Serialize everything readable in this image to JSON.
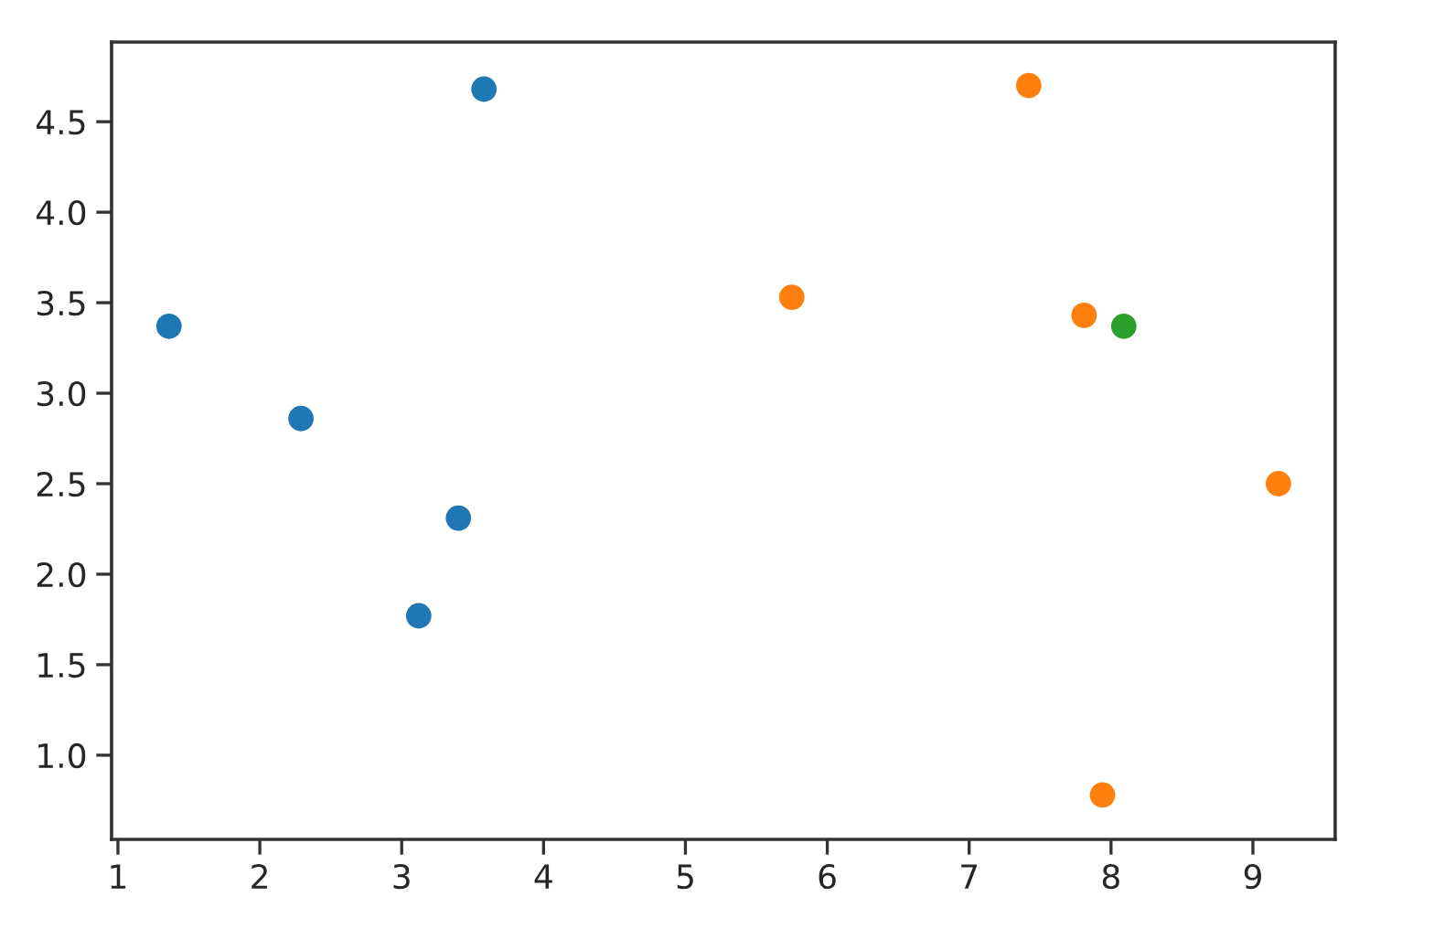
{
  "chart_data": {
    "type": "scatter",
    "marker": "circle",
    "xlim": [
      0.955,
      9.58
    ],
    "ylim": [
      0.535,
      4.94
    ],
    "xticks": [
      1,
      2,
      3,
      4,
      5,
      6,
      7,
      8,
      9
    ],
    "yticks": [
      {
        "value": 1,
        "label": "1.0"
      },
      1.5,
      {
        "value": 2,
        "label": "2.0"
      },
      2.5,
      {
        "value": 3,
        "label": "3.0"
      },
      3.5,
      {
        "value": 4,
        "label": "4.0"
      },
      4.5
    ],
    "series": [
      {
        "color": "#1f77b4",
        "x": [
          1.36,
          2.29,
          3.58,
          3.4,
          3.12
        ],
        "values": [
          3.37,
          2.86,
          4.68,
          2.31,
          1.77
        ]
      },
      {
        "color": "#ff7f0e",
        "x": [
          7.42,
          5.75,
          7.81,
          9.18,
          7.94
        ],
        "values": [
          4.7,
          3.53,
          3.43,
          2.5,
          0.78
        ]
      },
      {
        "color": "#2ca02c",
        "x": [
          8.09
        ],
        "values": [
          3.37
        ]
      }
    ]
  }
}
